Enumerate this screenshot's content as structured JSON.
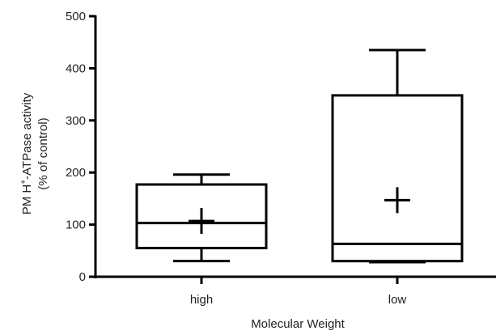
{
  "chart_data": {
    "type": "box",
    "xlabel": "Molecular Weight",
    "ylabel_line1": "PM H",
    "ylabel_sup": "+",
    "ylabel_line1_rest": "-ATPase activity",
    "ylabel_line2": "(% of control)",
    "ylim": [
      0,
      500
    ],
    "yticks": [
      0,
      100,
      200,
      300,
      400,
      500
    ],
    "categories": [
      "high",
      "low"
    ],
    "boxes": [
      {
        "category": "high",
        "min": 30,
        "q1": 55,
        "median": 103,
        "q3": 177,
        "max": 196,
        "mean": 107
      },
      {
        "category": "low",
        "min": 28,
        "q1": 30,
        "median": 63,
        "q3": 348,
        "max": 435,
        "mean": 147
      }
    ],
    "color": "#000000"
  }
}
